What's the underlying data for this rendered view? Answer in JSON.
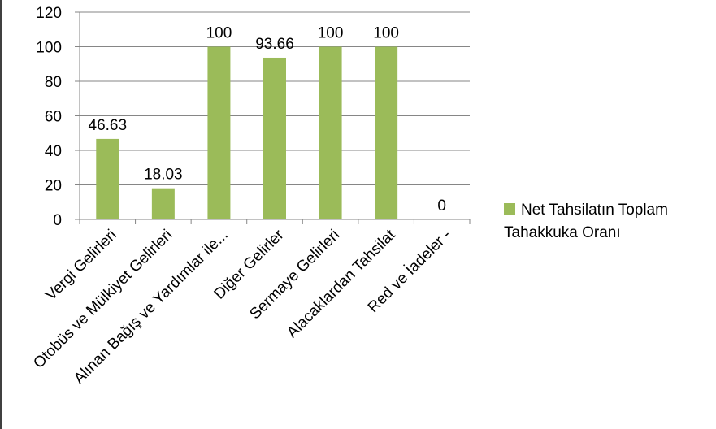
{
  "chart_data": {
    "type": "bar",
    "categories": [
      "Vergi Gelirleri",
      "Otobüs ve Mülkiyet Gelirleri",
      "Alınan Bağış ve Yardımlar ile...",
      "Diğer Gelirler",
      "Sermaye Gelirleri",
      "Alacaklardan Tahsilat",
      "Red ve İadeler -"
    ],
    "series": [
      {
        "name": "Net Tahsilatın Toplam Tahakkuka Oranı",
        "values": [
          46.63,
          18.03,
          100,
          93.66,
          100,
          100,
          0
        ],
        "data_labels": [
          "46.63",
          "18.03",
          "100",
          "93.66",
          "100",
          "100",
          "0"
        ],
        "color": "#9bbb59"
      }
    ],
    "yticks": [
      "0",
      "20",
      "40",
      "60",
      "80",
      "100",
      "120"
    ],
    "ylim": [
      0,
      120
    ],
    "grid": true,
    "legend_position": "right"
  }
}
